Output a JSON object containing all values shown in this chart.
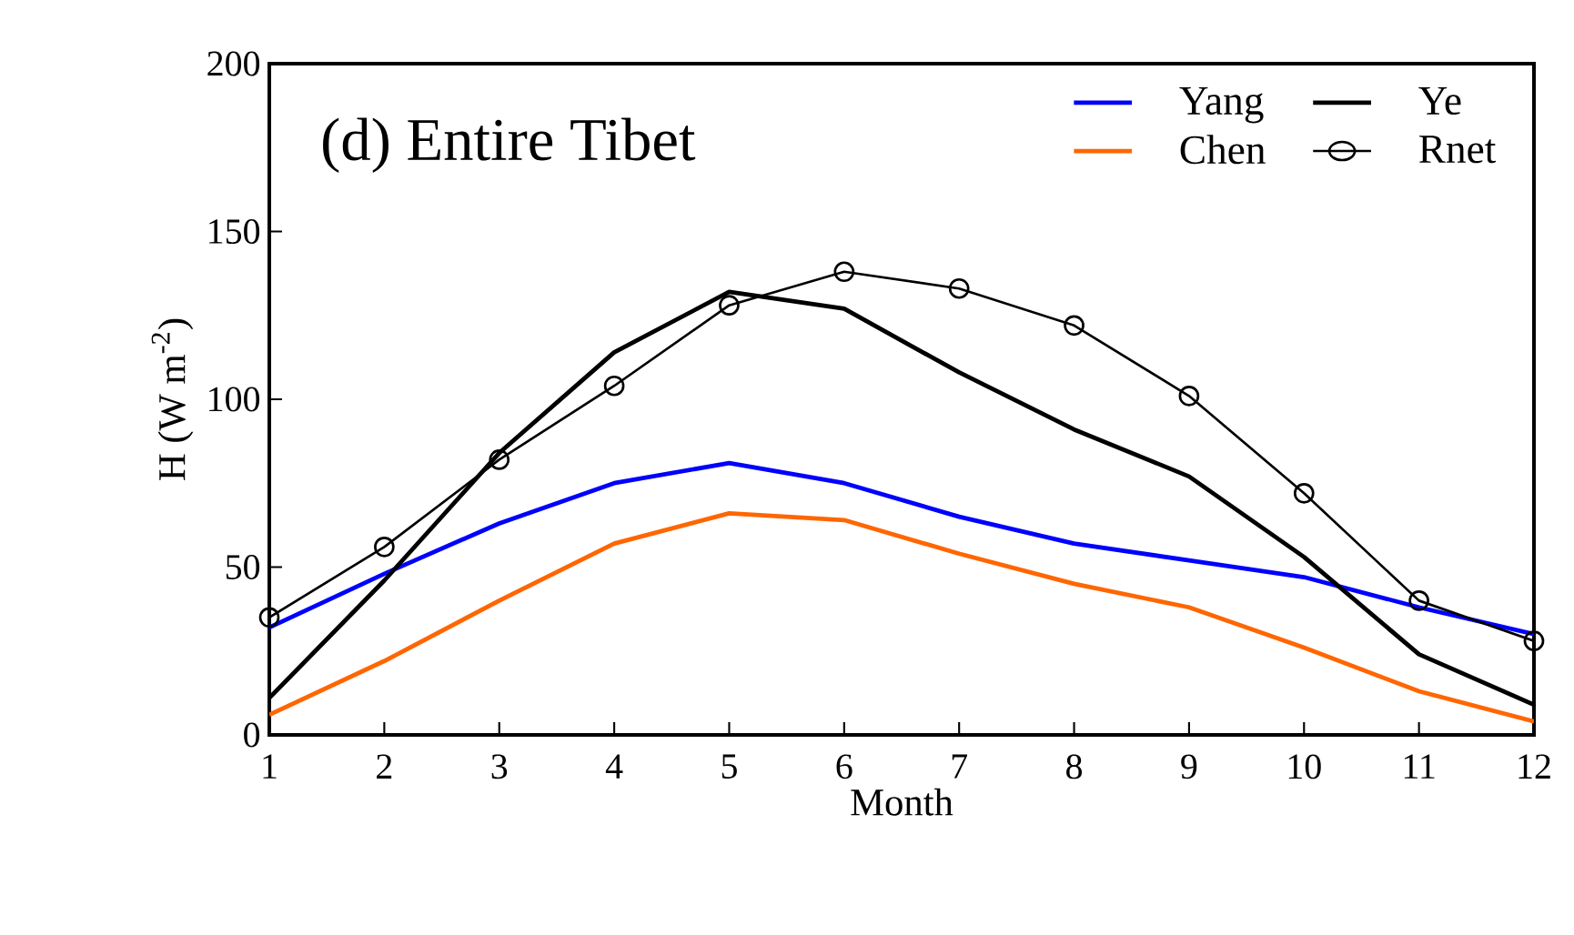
{
  "chart_data": {
    "type": "line",
    "title": "(d) Entire Tibet",
    "xlabel": "Month",
    "ylabel": "H (W m$^{-2}$)",
    "x": [
      1,
      2,
      3,
      4,
      5,
      6,
      7,
      8,
      9,
      10,
      11,
      12
    ],
    "series": [
      {
        "name": "Yang",
        "color": "#0000ff",
        "values": [
          32,
          48,
          63,
          75,
          81,
          75,
          65,
          57,
          52,
          47,
          38,
          30
        ]
      },
      {
        "name": "Ye",
        "color": "#000000",
        "values": [
          11,
          46,
          84,
          114,
          132,
          127,
          108,
          91,
          77,
          53,
          24,
          9
        ]
      },
      {
        "name": "Chen",
        "color": "#ff6600",
        "values": [
          6,
          22,
          40,
          57,
          66,
          64,
          54,
          45,
          38,
          26,
          13,
          4
        ]
      },
      {
        "name": "Rnet",
        "color": "#000000",
        "marker": "circle",
        "values": [
          35,
          56,
          82,
          104,
          128,
          138,
          133,
          122,
          101,
          72,
          40,
          28
        ]
      }
    ],
    "xlim": [
      1,
      12
    ],
    "ylim": [
      0,
      200
    ],
    "xticks": [
      1,
      2,
      3,
      4,
      5,
      6,
      7,
      8,
      9,
      10,
      11,
      12
    ],
    "yticks": [
      0,
      50,
      100,
      150,
      200
    ],
    "grid": false,
    "legend": "top right",
    "marker": "none",
    "line_style": "solid"
  }
}
